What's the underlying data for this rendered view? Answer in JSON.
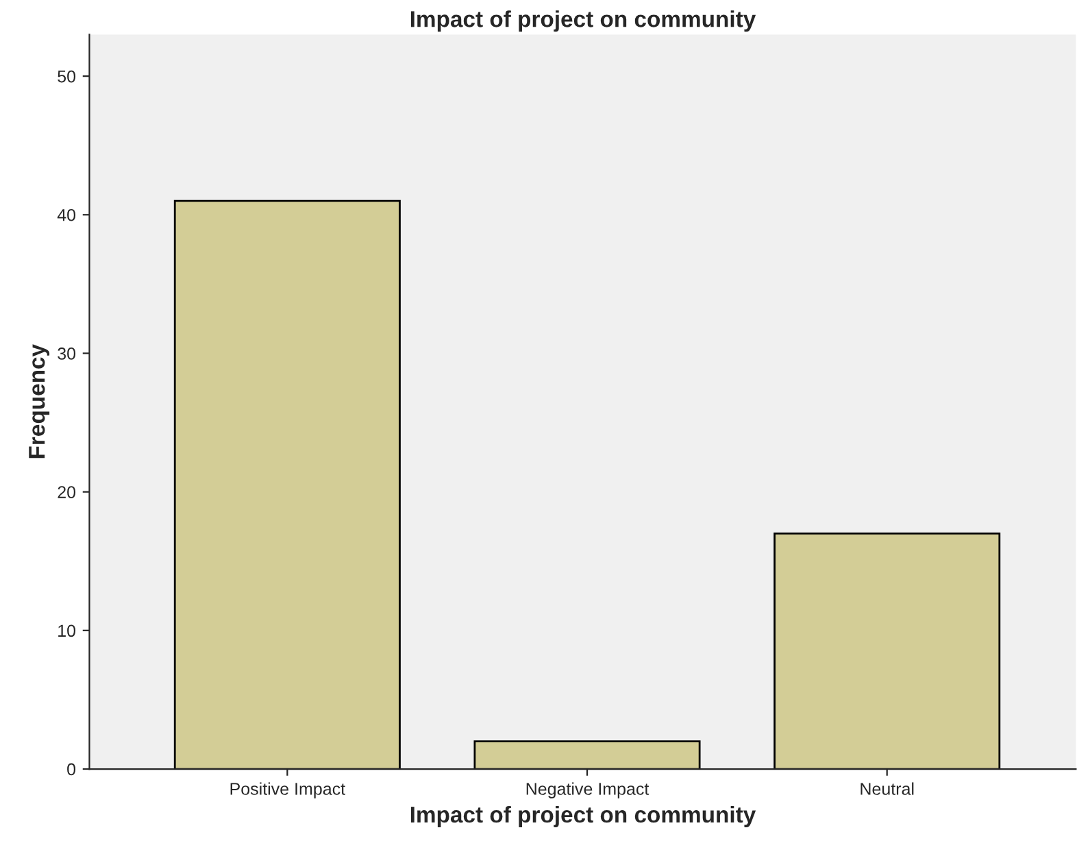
{
  "chart_data": {
    "type": "bar",
    "title": "Impact of project on community",
    "xlabel": "Impact of project on community",
    "ylabel": "Frequency",
    "categories": [
      "Positive Impact",
      "Negative Impact",
      "Neutral"
    ],
    "values": [
      41,
      2,
      17
    ],
    "color": "#d3cd96",
    "ylim": [
      0,
      53
    ],
    "yticks": [
      0,
      10,
      20,
      30,
      40,
      50
    ],
    "grid": false
  }
}
